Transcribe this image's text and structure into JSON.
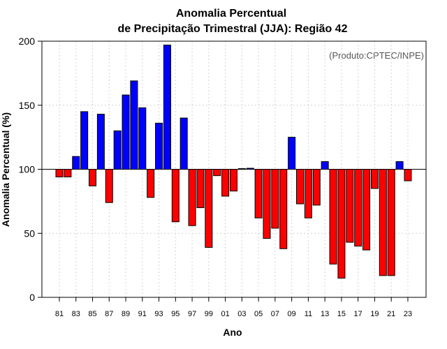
{
  "chart_data": {
    "type": "bar",
    "title_line1": "Anomalia Percentual",
    "title_line2": "de Precipitação Trimestral (JJA): Região 42",
    "xlabel": "Ano",
    "ylabel": "Anomalia Percentual (%)",
    "source_note": "(Produto:CPTEC/INPE)",
    "baseline": 100,
    "ylim": [
      0,
      200
    ],
    "yticks": [
      "0",
      "50",
      "100",
      "150",
      "200"
    ],
    "ytick_values": [
      0,
      50,
      100,
      150,
      200
    ],
    "grid": true,
    "colors": {
      "above": "#0000ff",
      "below": "#ff0000",
      "edge": "#000000",
      "grid": "#d3d3d3"
    },
    "categories": [
      "81",
      "82",
      "83",
      "84",
      "85",
      "86",
      "87",
      "88",
      "89",
      "90",
      "91",
      "92",
      "93",
      "94",
      "95",
      "96",
      "97",
      "98",
      "99",
      "00",
      "01",
      "02",
      "03",
      "04",
      "05",
      "06",
      "07",
      "08",
      "09",
      "10",
      "11",
      "12",
      "13",
      "14",
      "15",
      "16",
      "17",
      "18",
      "19",
      "20",
      "21",
      "22",
      "23"
    ],
    "xtick_labels": [
      "81",
      "83",
      "85",
      "87",
      "89",
      "91",
      "93",
      "95",
      "97",
      "99",
      "01",
      "03",
      "05",
      "07",
      "09",
      "11",
      "13",
      "15",
      "17",
      "19",
      "21",
      "23"
    ],
    "values": [
      94,
      94,
      110,
      145,
      87,
      143,
      74,
      130,
      158,
      169,
      148,
      78,
      136,
      197,
      59,
      140,
      56,
      70,
      39,
      95,
      79,
      83,
      100.5,
      100.8,
      62,
      46,
      54,
      38,
      125,
      73,
      62,
      72,
      106,
      26,
      15,
      43,
      40,
      37,
      85,
      17,
      17,
      106,
      91
    ]
  }
}
